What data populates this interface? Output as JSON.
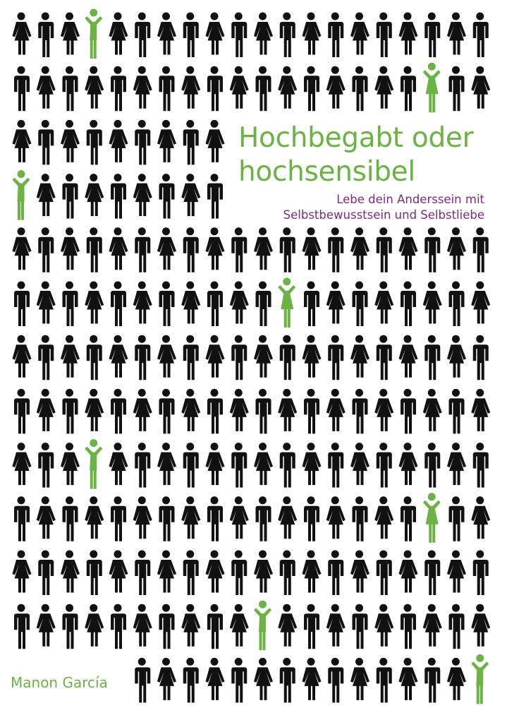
{
  "cover": {
    "title_line1": "Hochbegabt oder",
    "title_line2": "hochsensibel",
    "subtitle_line1": "Lebe dein Anderssein mit",
    "subtitle_line2": "Selbstbewusstsein und Selbstliebe",
    "author": "Manon García"
  },
  "illustration": {
    "icon": "person-pictogram-crowd",
    "figure_color": "#111111",
    "highlight_color": "#6ab344",
    "highlight_pose": "arms-raised"
  },
  "colors": {
    "title": "#6ab344",
    "subtitle": "#7d2b7f",
    "author": "#6ab344",
    "background": "#ffffff"
  }
}
